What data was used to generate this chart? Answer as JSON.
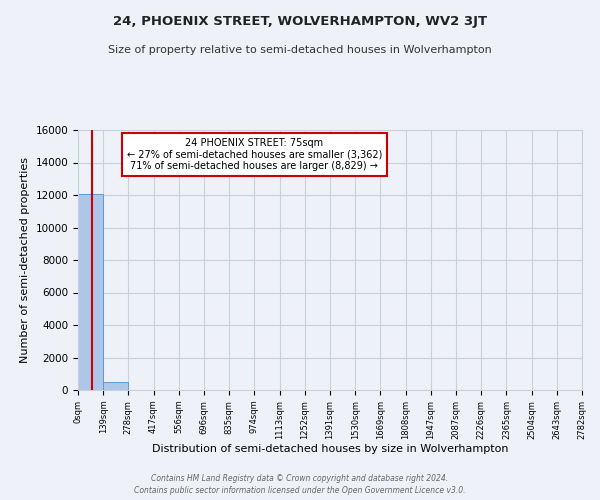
{
  "title": "24, PHOENIX STREET, WOLVERHAMPTON, WV2 3JT",
  "subtitle": "Size of property relative to semi-detached houses in Wolverhampton",
  "xlabel": "Distribution of semi-detached houses by size in Wolverhampton",
  "ylabel": "Number of semi-detached properties",
  "bin_edges": [
    0,
    139,
    278,
    417,
    556,
    696,
    835,
    974,
    1113,
    1252,
    1391,
    1530,
    1669,
    1808,
    1947,
    2087,
    2226,
    2365,
    2504,
    2643,
    2782
  ],
  "bar_heights": [
    12050,
    480,
    10,
    5,
    3,
    2,
    2,
    1,
    1,
    1,
    1,
    1,
    0,
    0,
    0,
    0,
    0,
    0,
    0,
    0
  ],
  "bar_color": "#aec6e8",
  "bar_edgecolor": "#5b9bd5",
  "property_size": 75,
  "annotation_title": "24 PHOENIX STREET: 75sqm",
  "annotation_line1": "← 27% of semi-detached houses are smaller (3,362)",
  "annotation_line2": "71% of semi-detached houses are larger (8,829) →",
  "annotation_box_color": "#ffffff",
  "annotation_box_edgecolor": "#cc0000",
  "red_line_color": "#cc0000",
  "ylim": [
    0,
    16000
  ],
  "yticks": [
    0,
    2000,
    4000,
    6000,
    8000,
    10000,
    12000,
    14000,
    16000
  ],
  "xtick_labels": [
    "0sqm",
    "139sqm",
    "278sqm",
    "417sqm",
    "556sqm",
    "696sqm",
    "835sqm",
    "974sqm",
    "1113sqm",
    "1252sqm",
    "1391sqm",
    "1530sqm",
    "1669sqm",
    "1808sqm",
    "1947sqm",
    "2087sqm",
    "2226sqm",
    "2365sqm",
    "2504sqm",
    "2643sqm",
    "2782sqm"
  ],
  "bg_color": "#eef2f8",
  "grid_color": "#c8d0dc",
  "footer1": "Contains HM Land Registry data © Crown copyright and database right 2024.",
  "footer2": "Contains public sector information licensed under the Open Government Licence v3.0."
}
